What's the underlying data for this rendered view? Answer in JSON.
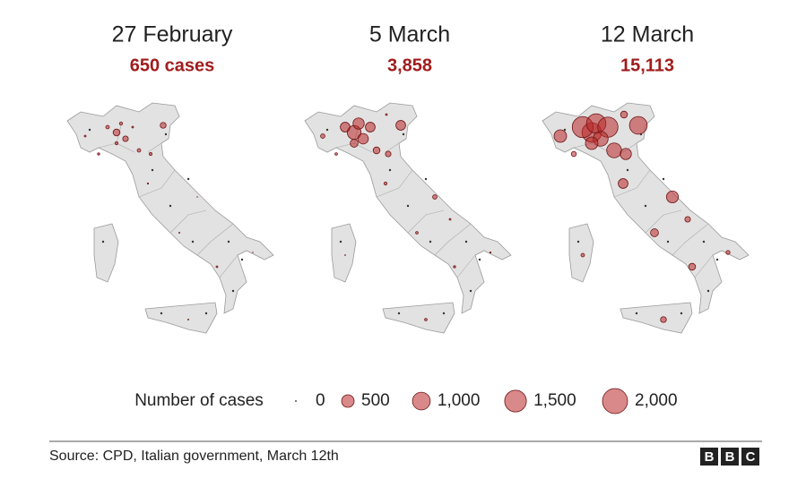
{
  "panels": [
    {
      "title": "27 February",
      "subtitle": "650 cases",
      "bubbles": [
        150,
        40,
        30,
        10,
        100,
        30,
        110,
        40,
        25,
        10,
        1,
        5,
        3,
        10,
        1,
        3,
        0,
        15,
        0,
        0
      ]
    },
    {
      "title": "5 March",
      "subtitle": "3,858",
      "bubbles": [
        600,
        300,
        400,
        300,
        350,
        200,
        300,
        150,
        100,
        60,
        60,
        30,
        20,
        15,
        5,
        20,
        2,
        20,
        10,
        10
      ]
    },
    {
      "title": "12 March",
      "subtitle": "15,113",
      "bubbles": [
        1200,
        1400,
        1200,
        1300,
        700,
        500,
        1000,
        700,
        400,
        500,
        450,
        300,
        200,
        150,
        50,
        110,
        40,
        80,
        100,
        150
      ]
    }
  ],
  "legend": {
    "title": "Number of cases",
    "sizes": [
      0,
      500,
      {
        "value": 1000,
        "label": "1,000"
      },
      {
        "value": 1500,
        "label": "1,500"
      },
      {
        "value": 2000,
        "label": "2,000"
      }
    ],
    "max": 2000
  },
  "source": "Source: CPD, Italian government, March 12th",
  "logo": [
    "B",
    "B",
    "C"
  ]
}
